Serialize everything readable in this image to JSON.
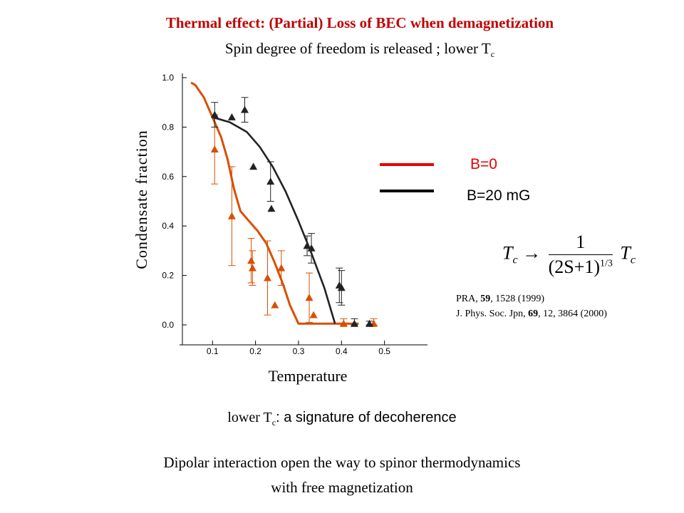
{
  "slide": {
    "title": "Thermal effect: (Partial) Loss of BEC when demagnetization",
    "subtitle_main": "Spin degree of freedom is released ; lower T",
    "subtitle_sub": "c",
    "formula": {
      "lhs": "T",
      "lhs_sub": "c",
      "arrow": "→",
      "numerator": "1",
      "denominator_base": "(2S+1)",
      "denominator_exp": "1/3",
      "rhs": "T",
      "rhs_sub": "c"
    },
    "ref1_a": "PRA, ",
    "ref1_b": "59",
    "ref1_c": ", 1528 (1999)",
    "ref2_a": "J. Phys. Soc. Jpn,  ",
    "ref2_b": "69",
    "ref2_c": ", 12, 3864 (2000)",
    "note_prefix": "lower T",
    "note_sub": "c",
    "note_rest": ": a signature of decoherence",
    "footer_line1": "Dipolar interaction open the way to spinor thermodynamics",
    "footer_line2": "with free magnetization"
  },
  "chart_data": {
    "type": "scatter",
    "xlabel": "Temperature",
    "ylabel": "Condensate fraction",
    "xlim": [
      0.03,
      0.6
    ],
    "ylim": [
      0.0,
      1.0
    ],
    "xticks": [
      "0.1",
      "0.2",
      "0.3",
      "0.4",
      "0.5"
    ],
    "yticks": [
      "0.0",
      "0.2",
      "0.4",
      "0.6",
      "0.8",
      "1.0"
    ],
    "series": [
      {
        "name": "B=0",
        "color": "#d94f00",
        "points": [
          {
            "x": 0.105,
            "y": 0.71,
            "err": 0.14
          },
          {
            "x": 0.145,
            "y": 0.44,
            "err": 0.2
          },
          {
            "x": 0.19,
            "y": 0.26,
            "err": 0.09
          },
          {
            "x": 0.193,
            "y": 0.23,
            "err": 0.07
          },
          {
            "x": 0.228,
            "y": 0.19,
            "err": 0.15
          },
          {
            "x": 0.245,
            "y": 0.08,
            "err": 0.0
          },
          {
            "x": 0.26,
            "y": 0.23,
            "err": 0.07
          },
          {
            "x": 0.325,
            "y": 0.11,
            "err": 0.1
          },
          {
            "x": 0.335,
            "y": 0.04,
            "err": 0.0
          },
          {
            "x": 0.405,
            "y": 0.005,
            "err": 0.02
          },
          {
            "x": 0.475,
            "y": 0.005,
            "err": 0.02
          }
        ],
        "curve": [
          [
            0.05,
            0.98
          ],
          [
            0.06,
            0.97
          ],
          [
            0.08,
            0.92
          ],
          [
            0.1,
            0.84
          ],
          [
            0.12,
            0.76
          ],
          [
            0.135,
            0.67
          ],
          [
            0.15,
            0.55
          ],
          [
            0.165,
            0.46
          ],
          [
            0.185,
            0.42
          ],
          [
            0.205,
            0.38
          ],
          [
            0.225,
            0.33
          ],
          [
            0.245,
            0.25
          ],
          [
            0.265,
            0.16
          ],
          [
            0.28,
            0.08
          ],
          [
            0.3,
            0.005
          ],
          [
            0.44,
            0.005
          ]
        ]
      },
      {
        "name": "B=20 mG",
        "color": "#222222",
        "points": [
          {
            "x": 0.105,
            "y": 0.85,
            "err": 0.05
          },
          {
            "x": 0.145,
            "y": 0.84,
            "err": 0.0
          },
          {
            "x": 0.175,
            "y": 0.87,
            "err": 0.05
          },
          {
            "x": 0.195,
            "y": 0.64,
            "err": 0.0
          },
          {
            "x": 0.235,
            "y": 0.58,
            "err": 0.08
          },
          {
            "x": 0.237,
            "y": 0.47,
            "err": 0.0
          },
          {
            "x": 0.32,
            "y": 0.32,
            "err": 0.04
          },
          {
            "x": 0.33,
            "y": 0.31,
            "err": 0.06
          },
          {
            "x": 0.395,
            "y": 0.16,
            "err": 0.07
          },
          {
            "x": 0.4,
            "y": 0.15,
            "err": 0.07
          },
          {
            "x": 0.43,
            "y": 0.005,
            "err": 0.02
          },
          {
            "x": 0.465,
            "y": 0.005,
            "err": 0.01
          }
        ],
        "curve": [
          [
            0.1,
            0.84
          ],
          [
            0.14,
            0.82
          ],
          [
            0.18,
            0.78
          ],
          [
            0.21,
            0.72
          ],
          [
            0.24,
            0.64
          ],
          [
            0.27,
            0.54
          ],
          [
            0.3,
            0.42
          ],
          [
            0.33,
            0.29
          ],
          [
            0.36,
            0.15
          ],
          [
            0.385,
            0.005
          ]
        ]
      }
    ]
  }
}
